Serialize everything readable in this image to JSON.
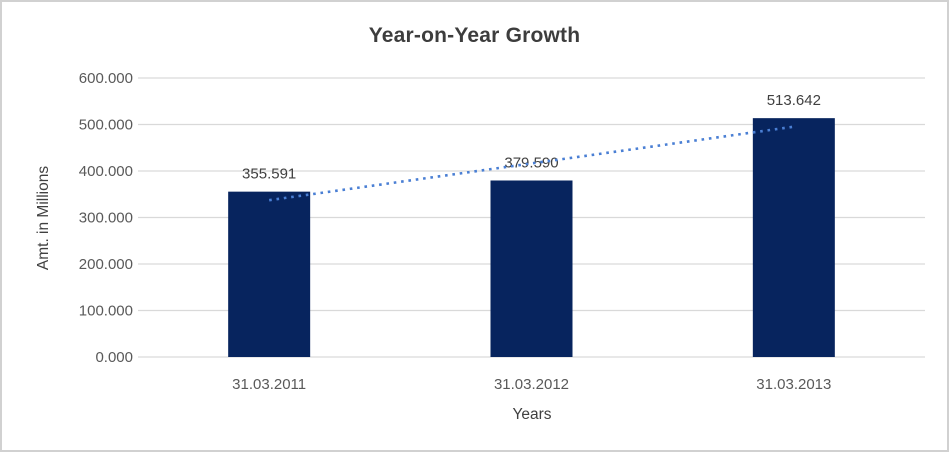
{
  "frame": {
    "background_color": "#ffffff",
    "border_color": "#d1d1d1"
  },
  "chart_data": {
    "type": "bar",
    "title": "Year-on-Year Growth",
    "xlabel": "Years",
    "ylabel": "Amt. in Millions",
    "categories": [
      "31.03.2011",
      "31.03.2012",
      "31.03.2013"
    ],
    "values": [
      355.591,
      379.59,
      513.642
    ],
    "data_labels": [
      "355.591",
      "379.590",
      "513.642"
    ],
    "y_ticks": [
      {
        "value": 0,
        "label": "0.000"
      },
      {
        "value": 100,
        "label": "100.000"
      },
      {
        "value": 200,
        "label": "200.000"
      },
      {
        "value": 300,
        "label": "300.000"
      },
      {
        "value": 400,
        "label": "400.000"
      },
      {
        "value": 500,
        "label": "500.000"
      },
      {
        "value": 600,
        "label": "600.000"
      }
    ],
    "ylim": [
      0,
      600
    ],
    "grid": true,
    "legend": "none",
    "trendline": {
      "kind": "linear",
      "style": "dotted",
      "color": "#4a7fd4"
    },
    "colors": {
      "bar_fill": "#07245e",
      "gridline": "#d9d9d9",
      "title_text": "#3d3d3d",
      "tick_text": "#595959",
      "data_label_text": "#404040"
    }
  }
}
